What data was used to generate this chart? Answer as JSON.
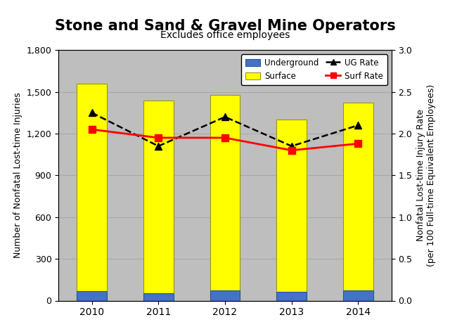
{
  "title": "Stone and Sand & Gravel Mine Operators",
  "subtitle": "Excludes office employees",
  "years": [
    2010,
    2011,
    2012,
    2013,
    2014
  ],
  "surface_values": [
    1560,
    1440,
    1480,
    1300,
    1420
  ],
  "underground_values": [
    70,
    55,
    75,
    65,
    75
  ],
  "ug_rate": [
    2.25,
    1.85,
    2.2,
    1.85,
    2.1
  ],
  "surf_rate": [
    2.05,
    1.95,
    1.95,
    1.8,
    1.88
  ],
  "surface_color": "#FFFF00",
  "underground_color": "#4472C4",
  "ug_rate_color": "#000000",
  "surf_rate_color": "#FF0000",
  "surface_edge_color": "#999900",
  "underground_edge_color": "#2255A0",
  "ylim_left": [
    0,
    1800
  ],
  "ylim_right": [
    0,
    3.0
  ],
  "yticks_left": [
    0,
    300,
    600,
    900,
    1200,
    1500,
    1800
  ],
  "yticks_right": [
    0.0,
    0.5,
    1.0,
    1.5,
    2.0,
    2.5,
    3.0
  ],
  "ylabel_left": "Number of Nonfatal Lost-time Injuries",
  "ylabel_right": "Nonfatal Lost-time Injury Rate\n(per 100 Full-time Equivalent Employees)",
  "legend_labels": [
    "Underground",
    "Surface",
    "UG Rate",
    "Surf Rate"
  ],
  "background_color": "#BEBEBE",
  "grid_color": "#AAAAAA",
  "title_fontsize": 15,
  "subtitle_fontsize": 10,
  "axis_label_fontsize": 9,
  "tick_fontsize": 9,
  "bar_width": 0.45
}
